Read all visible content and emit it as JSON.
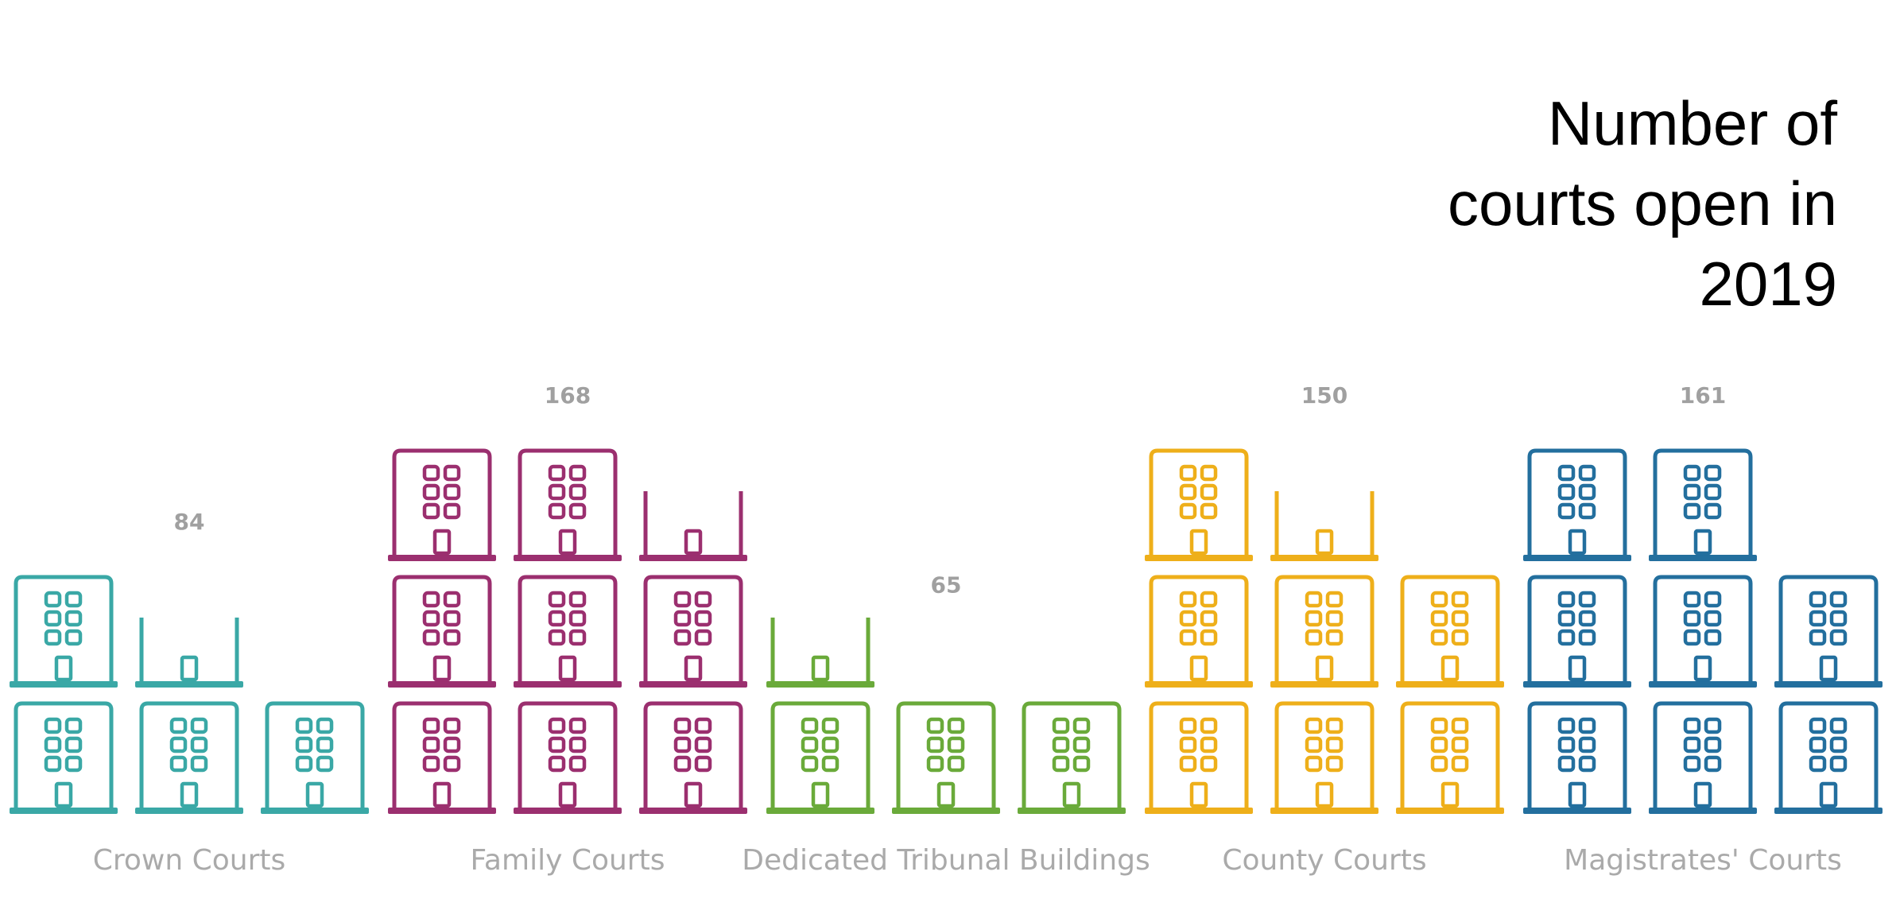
{
  "title_lines": [
    "Number of",
    "courts open in",
    "2019"
  ],
  "chart_data": {
    "type": "pictograph",
    "title": "Number of courts open in 2019",
    "unit_per_icon": "building icon",
    "categories": [
      "Crown Courts",
      "Family Courts",
      "Dedicated Tribunal Buildings",
      "County Courts",
      "Magistrates' Courts"
    ],
    "values": [
      84,
      168,
      65,
      150,
      161
    ],
    "colors": [
      "#3aa8a6",
      "#9b2f6f",
      "#6aaa3a",
      "#eeaf1a",
      "#236f9e"
    ],
    "icon_stacks": [
      [
        2,
        1.5,
        1
      ],
      [
        3,
        3,
        2.5
      ],
      [
        1.5,
        1,
        1
      ],
      [
        3,
        2.5,
        2
      ],
      [
        3,
        3,
        2
      ]
    ]
  }
}
